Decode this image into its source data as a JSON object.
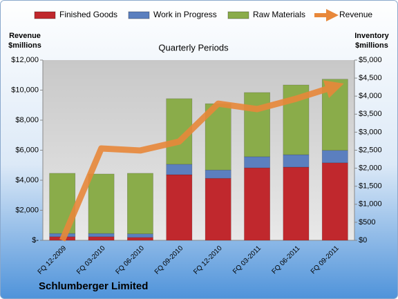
{
  "chart_data": {
    "type": "bar-line",
    "title": "Quarterly Periods",
    "y_label": "Revenue\n$millions",
    "y2_label": "Inventory\n$millions",
    "caption": "Schlumberger Limited",
    "categories": [
      "FQ 12-2009",
      "FQ 03-2010",
      "FQ 06-2010",
      "FQ 09-2010",
      "FQ 12-2010",
      "FQ 03-2011",
      "FQ 06-2011",
      "FQ 09-2011"
    ],
    "stacked": true,
    "series": [
      {
        "name": "Finished Goods",
        "color": "#c0282d",
        "axis": "y2",
        "values": [
          100,
          100,
          80,
          1820,
          1720,
          2010,
          2030,
          2150
        ]
      },
      {
        "name": "Work in Progress",
        "color": "#5b7fbf",
        "axis": "y2",
        "values": [
          90,
          90,
          100,
          290,
          230,
          310,
          345,
          345
        ]
      },
      {
        "name": "Raw Materials",
        "color": "#8aac4a",
        "axis": "y2",
        "values": [
          1670,
          1650,
          1680,
          1820,
          1840,
          1780,
          1935,
          1975
        ]
      },
      {
        "name": "Revenue",
        "color": "#e8883a",
        "type": "line",
        "values": [
          0,
          6115,
          5980,
          6575,
          9100,
          8735,
          9425,
          10250
        ]
      }
    ],
    "ylim": [
      0,
      12000
    ],
    "yticks": [
      {
        "value": 0,
        "label": "$-"
      },
      {
        "value": 2000,
        "label": "$2,000"
      },
      {
        "value": 4000,
        "label": "$4,000"
      },
      {
        "value": 6000,
        "label": "$6,000"
      },
      {
        "value": 8000,
        "label": "$8,000"
      },
      {
        "value": 10000,
        "label": "$10,000"
      },
      {
        "value": 12000,
        "label": "$12,000"
      }
    ],
    "y2lim": [
      0,
      5000
    ],
    "y2ticks": [
      {
        "value": 0,
        "label": "$0"
      },
      {
        "value": 500,
        "label": "$500"
      },
      {
        "value": 1000,
        "label": "$1,000"
      },
      {
        "value": 1500,
        "label": "$1,500"
      },
      {
        "value": 2000,
        "label": "$2,000"
      },
      {
        "value": 2500,
        "label": "$2,500"
      },
      {
        "value": 3000,
        "label": "$3,000"
      },
      {
        "value": 3500,
        "label": "$3,500"
      },
      {
        "value": 4000,
        "label": "$4,000"
      },
      {
        "value": 4500,
        "label": "$4,500"
      },
      {
        "value": 5000,
        "label": "$5,000"
      }
    ],
    "grid": false,
    "legend": "top"
  }
}
